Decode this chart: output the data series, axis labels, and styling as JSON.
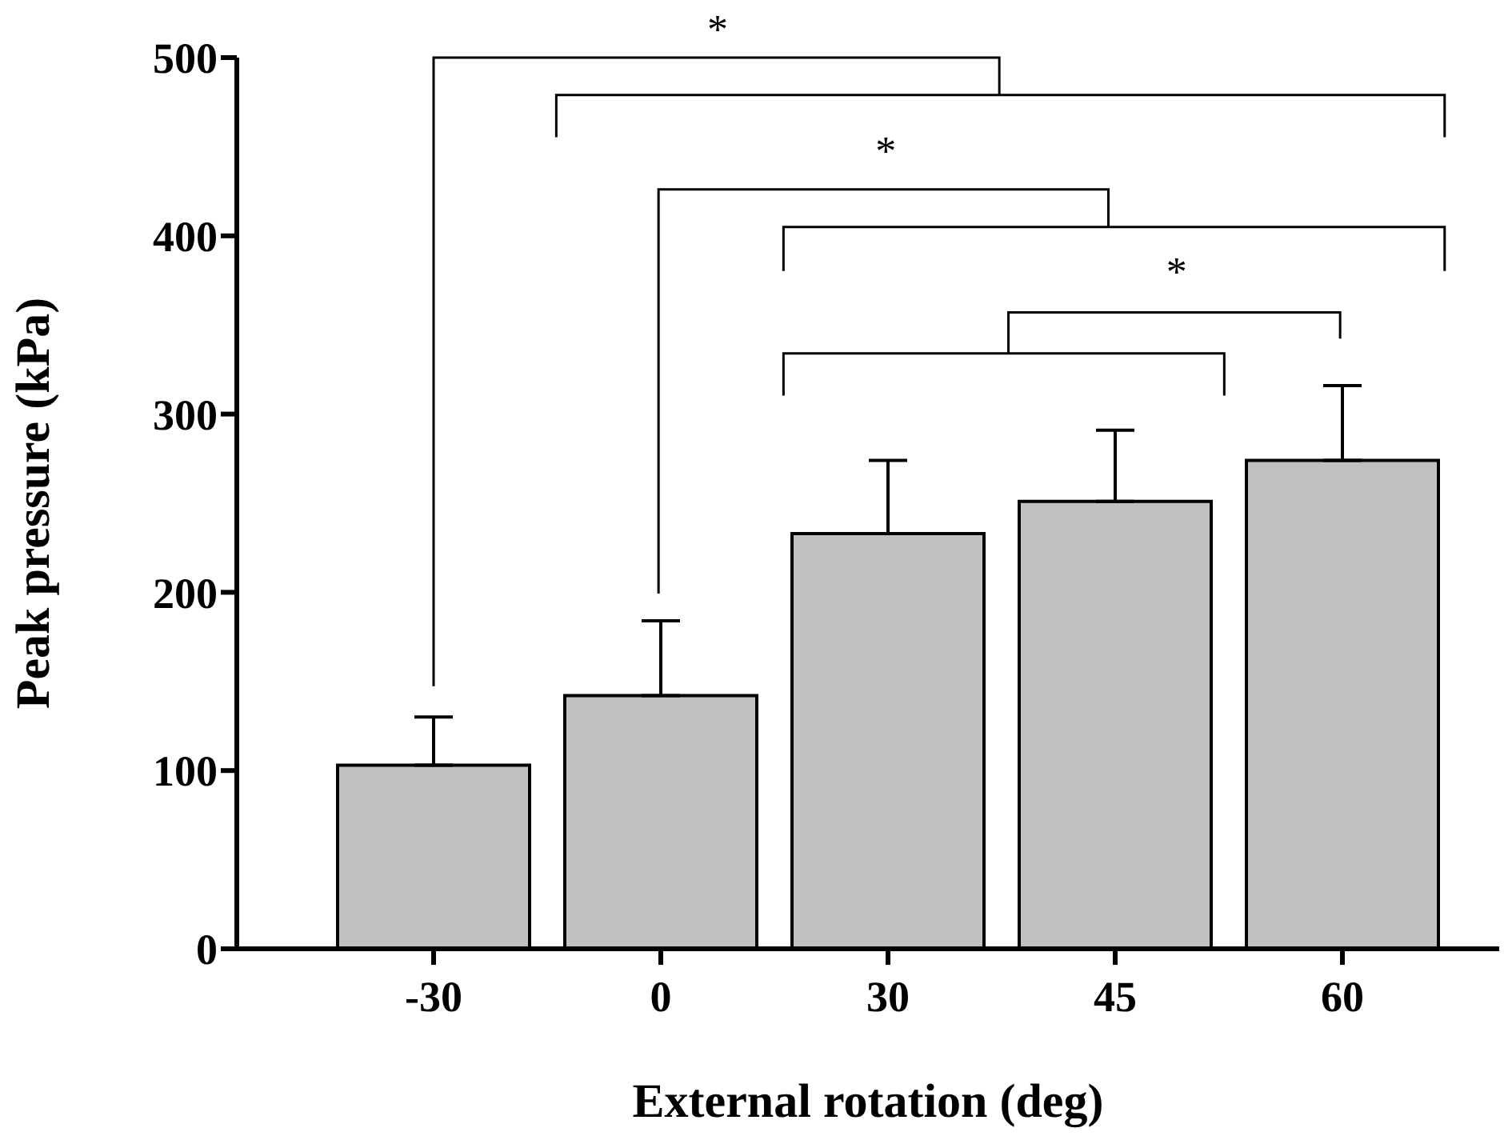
{
  "chart_data": {
    "type": "bar",
    "xlabel": "External rotation (deg)",
    "ylabel": "Peak pressure (kPa)",
    "categories": [
      "-30",
      "0",
      "30",
      "45",
      "60"
    ],
    "values": [
      103,
      142,
      233,
      251,
      274
    ],
    "errors": [
      27,
      42,
      41,
      40,
      42
    ],
    "color": "#c0c0c0",
    "ylim": [
      0,
      500
    ],
    "yticks": [
      0,
      100,
      200,
      300,
      400,
      500
    ],
    "annotations": [
      "*",
      "*",
      "*"
    ]
  }
}
